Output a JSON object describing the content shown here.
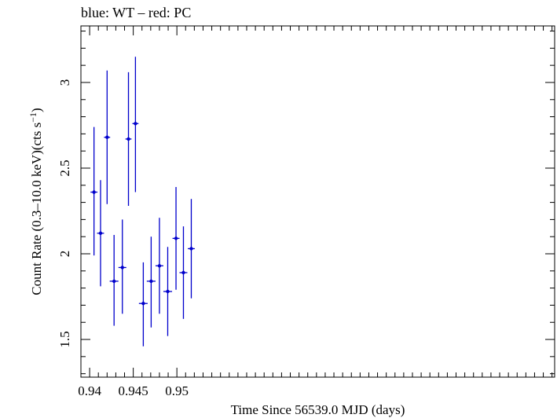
{
  "chart_data": {
    "type": "scatter",
    "title": "blue: WT – red: PC",
    "xlabel": "Time Since 56539.0 MJD (days)",
    "ylabel_main": "Count Rate (0.3–10.0 keV)(cts s",
    "ylabel_sup": "−1",
    "ylabel_close": ")",
    "xlim": [
      0.939,
      0.9933
    ],
    "ylim": [
      1.28,
      3.33
    ],
    "x_ticks": [
      0.94,
      0.945,
      0.95
    ],
    "x_tick_labels": [
      "0.94",
      "0.945",
      "0.95"
    ],
    "y_ticks": [
      1.5,
      2,
      2.5,
      3
    ],
    "y_tick_labels": [
      "1.5",
      "2",
      "2.5",
      "3"
    ],
    "x_minor_step": 0.001,
    "y_minor_step": 0.1,
    "grid": false,
    "series": [
      {
        "color": "#0000cc",
        "points": [
          {
            "x": 0.9405,
            "y": 2.36,
            "xerr": 0.0004,
            "ylo": 1.99,
            "yhi": 2.74
          },
          {
            "x": 0.94125,
            "y": 2.12,
            "xerr": 0.0004,
            "ylo": 1.81,
            "yhi": 2.43
          },
          {
            "x": 0.942,
            "y": 2.68,
            "xerr": 0.00035,
            "ylo": 2.29,
            "yhi": 3.07
          },
          {
            "x": 0.9428,
            "y": 1.84,
            "xerr": 0.0005,
            "ylo": 1.58,
            "yhi": 2.11
          },
          {
            "x": 0.94375,
            "y": 1.92,
            "xerr": 0.00045,
            "ylo": 1.65,
            "yhi": 2.2
          },
          {
            "x": 0.94445,
            "y": 2.67,
            "xerr": 0.00035,
            "ylo": 2.28,
            "yhi": 3.06
          },
          {
            "x": 0.94525,
            "y": 2.76,
            "xerr": 0.00035,
            "ylo": 2.36,
            "yhi": 3.15
          },
          {
            "x": 0.94615,
            "y": 1.71,
            "xerr": 0.0005,
            "ylo": 1.46,
            "yhi": 1.95
          },
          {
            "x": 0.94705,
            "y": 1.84,
            "xerr": 0.0005,
            "ylo": 1.57,
            "yhi": 2.1
          },
          {
            "x": 0.948,
            "y": 1.93,
            "xerr": 0.00045,
            "ylo": 1.65,
            "yhi": 2.21
          },
          {
            "x": 0.94895,
            "y": 1.78,
            "xerr": 0.0005,
            "ylo": 1.52,
            "yhi": 2.04
          },
          {
            "x": 0.9499,
            "y": 2.09,
            "xerr": 0.0004,
            "ylo": 1.79,
            "yhi": 2.39
          },
          {
            "x": 0.95075,
            "y": 1.89,
            "xerr": 0.00045,
            "ylo": 1.62,
            "yhi": 2.16
          },
          {
            "x": 0.95165,
            "y": 2.03,
            "xerr": 0.0004,
            "ylo": 1.74,
            "yhi": 2.32
          }
        ]
      }
    ]
  }
}
